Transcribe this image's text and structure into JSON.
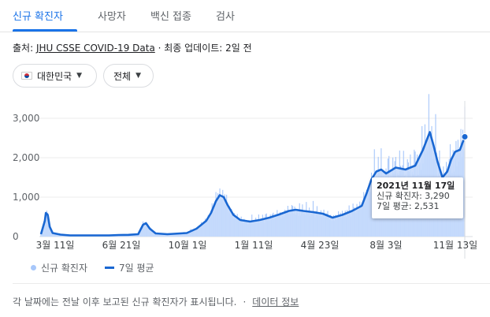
{
  "tabs": [
    {
      "label": "신규 확진자",
      "active": true
    },
    {
      "label": "사망자"
    },
    {
      "label": "백신 접종"
    },
    {
      "label": "검사"
    }
  ],
  "source": {
    "prefix": "출처: ",
    "link": "JHU CSSE COVID-19 Data",
    "suffix": " · 최종 업데이트: 2일 전"
  },
  "filters": {
    "country": "대한민국",
    "range": "전체"
  },
  "tooltip": {
    "date": "2021년 11월 17일",
    "cases_line": "신규 확진자: 3,290",
    "avg_line": "7일 평균: 2,531"
  },
  "legend": {
    "cases": "신규 확진자",
    "average": "7일 평균"
  },
  "footer": {
    "note": "각 날짜에는 전날 이후 보고된 신규 확진자가 표시됩니다.",
    "separator": "·",
    "data_link": "데이터 정보"
  },
  "colors": {
    "accent": "#1a73e8",
    "bar": "#a7c7fa",
    "area": "#c6dafc",
    "line": "#1967d2"
  },
  "chart_data": {
    "type": "bar",
    "title": "",
    "xlabel": "",
    "ylabel": "",
    "y_ticks": [
      "0",
      "1,000",
      "2,000",
      "3,000"
    ],
    "ylim": [
      0,
      3400
    ],
    "x_ticks": [
      "3월 11일",
      "6월 21일",
      "10월 1일",
      "1월 11일",
      "4월 23일",
      "8월 3일",
      "11월 13일"
    ],
    "series": [
      {
        "name": "7일 평균",
        "type": "line",
        "points": [
          [
            0,
            60
          ],
          [
            4,
            400
          ],
          [
            5,
            600
          ],
          [
            7,
            550
          ],
          [
            9,
            250
          ],
          [
            12,
            90
          ],
          [
            20,
            50
          ],
          [
            30,
            30
          ],
          [
            50,
            30
          ],
          [
            70,
            30
          ],
          [
            80,
            40
          ],
          [
            90,
            45
          ],
          [
            100,
            60
          ],
          [
            105,
            300
          ],
          [
            108,
            340
          ],
          [
            112,
            200
          ],
          [
            118,
            80
          ],
          [
            130,
            60
          ],
          [
            150,
            90
          ],
          [
            160,
            200
          ],
          [
            170,
            400
          ],
          [
            175,
            600
          ],
          [
            180,
            900
          ],
          [
            184,
            1050
          ],
          [
            188,
            1000
          ],
          [
            192,
            800
          ],
          [
            198,
            550
          ],
          [
            205,
            420
          ],
          [
            215,
            380
          ],
          [
            225,
            420
          ],
          [
            235,
            480
          ],
          [
            245,
            560
          ],
          [
            255,
            650
          ],
          [
            262,
            680
          ],
          [
            270,
            650
          ],
          [
            280,
            620
          ],
          [
            290,
            580
          ],
          [
            300,
            480
          ],
          [
            310,
            550
          ],
          [
            320,
            650
          ],
          [
            330,
            780
          ],
          [
            335,
            1100
          ],
          [
            340,
            1450
          ],
          [
            345,
            1650
          ],
          [
            350,
            1700
          ],
          [
            355,
            1600
          ],
          [
            365,
            1750
          ],
          [
            375,
            1700
          ],
          [
            385,
            1800
          ],
          [
            393,
            2200
          ],
          [
            400,
            2650
          ],
          [
            404,
            2300
          ],
          [
            408,
            1900
          ],
          [
            413,
            1500
          ],
          [
            418,
            1650
          ],
          [
            422,
            1950
          ],
          [
            426,
            2150
          ],
          [
            431,
            2200
          ],
          [
            436,
            2531
          ]
        ]
      }
    ],
    "bars": {
      "name": "신규 확진자",
      "x_range": [
        0,
        436
      ],
      "max_value": 3290
    },
    "highlight": {
      "x": 436,
      "value": 2531
    }
  }
}
